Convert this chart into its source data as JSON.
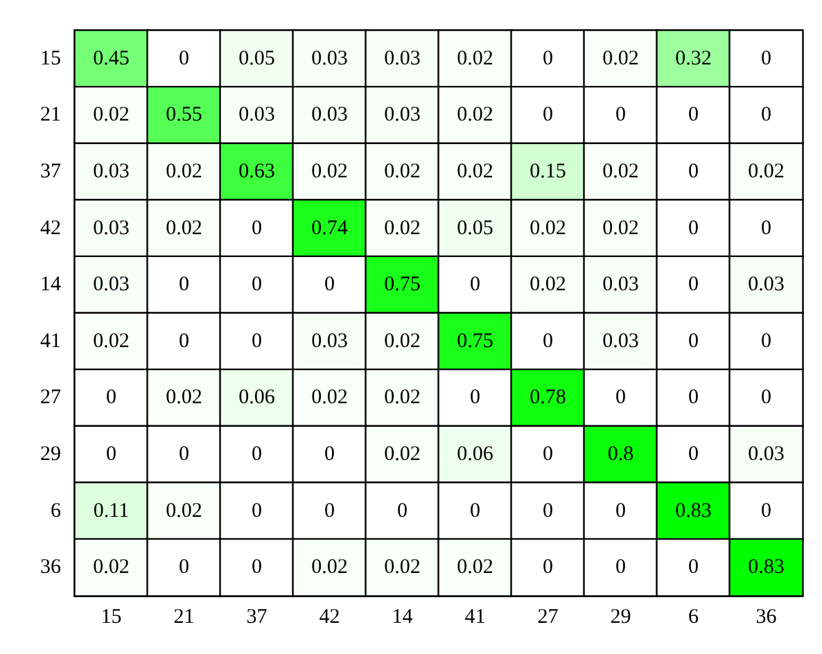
{
  "chart_data": {
    "type": "heatmap",
    "categories": [
      "15",
      "21",
      "37",
      "42",
      "14",
      "41",
      "27",
      "29",
      "6",
      "36"
    ],
    "y_categories": [
      "15",
      "21",
      "37",
      "42",
      "14",
      "41",
      "27",
      "29",
      "6",
      "36"
    ],
    "cells": [
      [
        0.45,
        0,
        0.05,
        0.03,
        0.03,
        0.02,
        0,
        0.02,
        0.32,
        0
      ],
      [
        0.02,
        0.55,
        0.03,
        0.03,
        0.03,
        0.02,
        0,
        0,
        0,
        0
      ],
      [
        0.03,
        0.02,
        0.63,
        0.02,
        0.02,
        0.02,
        0.15,
        0.02,
        0,
        0.02
      ],
      [
        0.03,
        0.02,
        0,
        0.74,
        0.02,
        0.05,
        0.02,
        0.02,
        0,
        0
      ],
      [
        0.03,
        0,
        0,
        0,
        0.75,
        0,
        0.02,
        0.03,
        0,
        0.03
      ],
      [
        0.02,
        0,
        0,
        0.03,
        0.02,
        0.75,
        0,
        0.03,
        0,
        0
      ],
      [
        0,
        0.02,
        0.06,
        0.02,
        0.02,
        0,
        0.78,
        0,
        0,
        0
      ],
      [
        0,
        0,
        0,
        0,
        0.02,
        0.06,
        0,
        0.8,
        0,
        0.03
      ],
      [
        0.11,
        0.02,
        0,
        0,
        0,
        0,
        0,
        0,
        0.83,
        0
      ],
      [
        0.02,
        0,
        0,
        0.02,
        0.02,
        0.02,
        0,
        0,
        0,
        0.83
      ]
    ],
    "data_labels": true
  }
}
